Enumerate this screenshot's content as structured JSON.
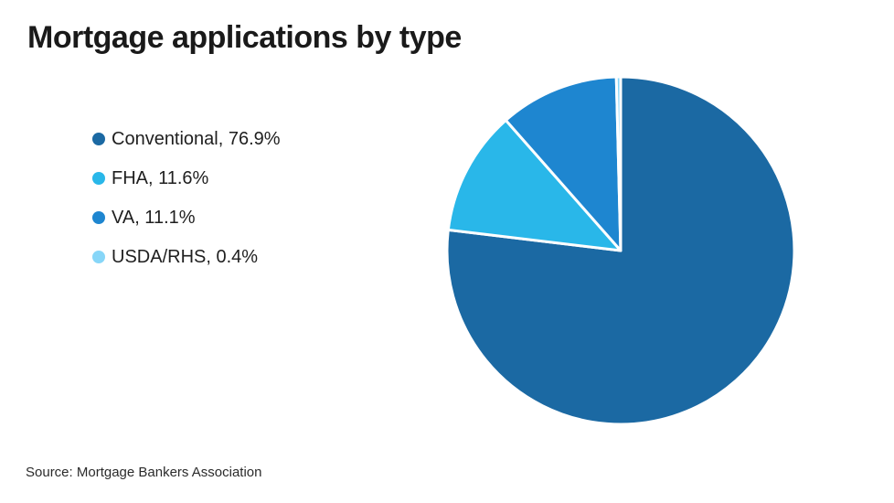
{
  "title": "Mortgage applications by type",
  "source": "Source: Mortgage Bankers Association",
  "background_color": "#ffffff",
  "chart_data": {
    "type": "pie",
    "title": "Mortgage applications by type",
    "categories": [
      "Conventional",
      "FHA",
      "VA",
      "USDA/RHS"
    ],
    "values": [
      76.9,
      11.6,
      11.1,
      0.4
    ],
    "colors": [
      "#1B69A3",
      "#29B7E9",
      "#1E86D0",
      "#87D6F8"
    ],
    "slice_separator_color": "#ffffff",
    "legend_position": "left",
    "legend_labels": [
      "Conventional, 76.9%",
      "FHA, 11.6%",
      "VA, 11.1%",
      "USDA/RHS, 0.4%"
    ],
    "start_angle_deg": 0,
    "direction": "clockwise"
  }
}
